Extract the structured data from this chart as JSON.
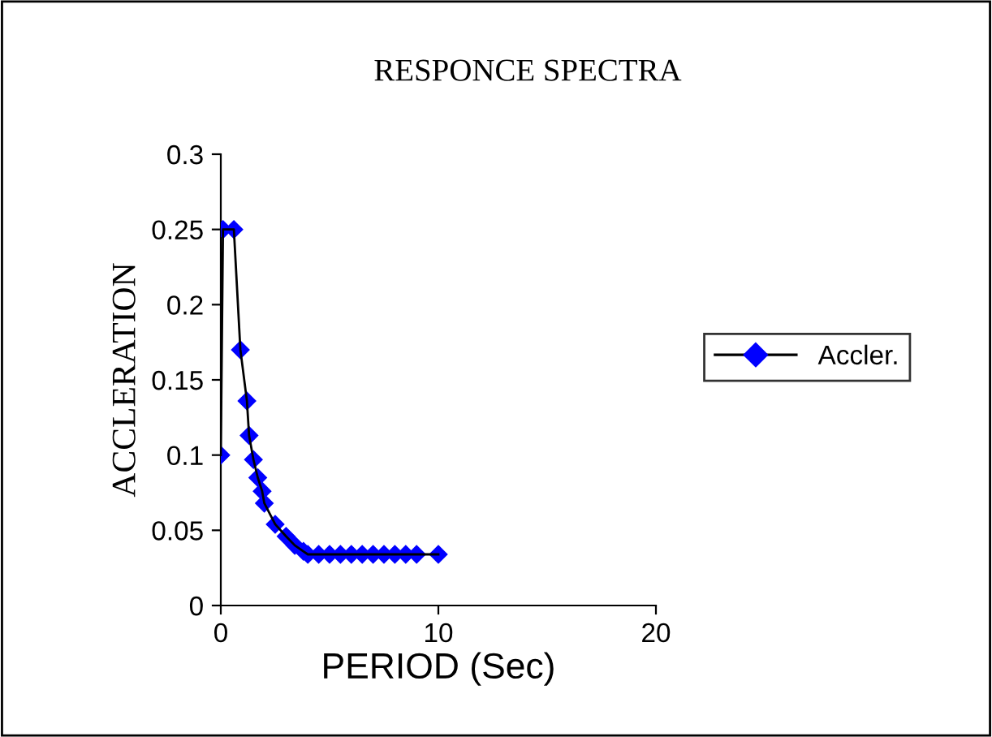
{
  "chart_data": {
    "type": "line",
    "title": "RESPONCE SPECTRA",
    "xlabel": "PERIOD (Sec)",
    "ylabel": "ACCLERATION",
    "x": [
      0,
      0.1,
      0.6,
      0.9,
      1.2,
      1.3,
      1.5,
      1.7,
      1.9,
      2.0,
      2.5,
      3.0,
      3.4,
      3.8,
      4.0,
      4.5,
      5.0,
      5.5,
      6.0,
      6.5,
      7.0,
      7.5,
      8.0,
      8.5,
      9.0,
      10.0
    ],
    "series": [
      {
        "name": "Accler.",
        "color": "#0000ff",
        "values": [
          0.1,
          0.25,
          0.25,
          0.17,
          0.136,
          0.113,
          0.097,
          0.085,
          0.076,
          0.068,
          0.054,
          0.046,
          0.04,
          0.036,
          0.034,
          0.034,
          0.034,
          0.034,
          0.034,
          0.034,
          0.034,
          0.034,
          0.034,
          0.034,
          0.034,
          0.034
        ]
      }
    ],
    "xlim": [
      0,
      20
    ],
    "xticks": [
      0,
      10,
      20
    ],
    "ylim": [
      0,
      0.3
    ],
    "yticks": [
      0,
      0.05,
      0.1,
      0.15,
      0.2,
      0.25,
      0.3
    ],
    "grid": false,
    "legend": "right",
    "marker": "diamond",
    "line_style": "solid"
  }
}
